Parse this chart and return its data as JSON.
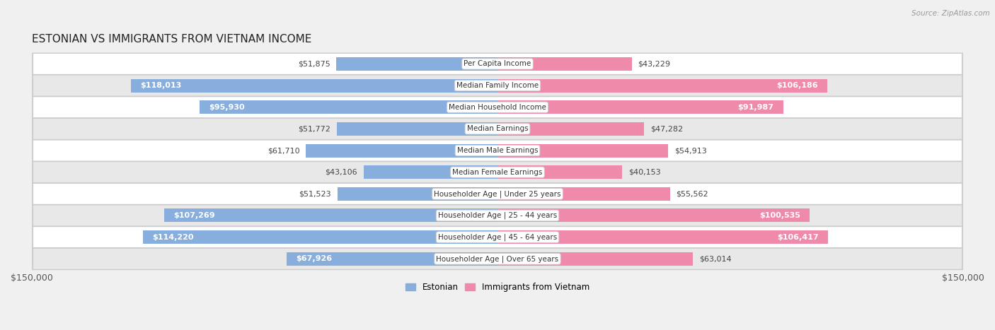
{
  "title": "ESTONIAN VS IMMIGRANTS FROM VIETNAM INCOME",
  "source": "Source: ZipAtlas.com",
  "categories": [
    "Per Capita Income",
    "Median Family Income",
    "Median Household Income",
    "Median Earnings",
    "Median Male Earnings",
    "Median Female Earnings",
    "Householder Age | Under 25 years",
    "Householder Age | 25 - 44 years",
    "Householder Age | 45 - 64 years",
    "Householder Age | Over 65 years"
  ],
  "estonian_values": [
    51875,
    118013,
    95930,
    51772,
    61710,
    43106,
    51523,
    107269,
    114220,
    67926
  ],
  "vietnam_values": [
    43229,
    106186,
    91987,
    47282,
    54913,
    40153,
    55562,
    100535,
    106417,
    63014
  ],
  "estonian_color": "#88aedd",
  "vietnam_color": "#f08aaa",
  "max_value": 150000,
  "background_color": "#f0f0f0",
  "row_bg_even": "#ffffff",
  "row_bg_odd": "#e8e8e8",
  "bar_height": 0.62,
  "figsize": [
    14.06,
    4.67
  ],
  "dpi": 100,
  "label_threshold": 65000,
  "title_fontsize": 11,
  "label_fontsize": 8,
  "cat_fontsize": 7.5
}
